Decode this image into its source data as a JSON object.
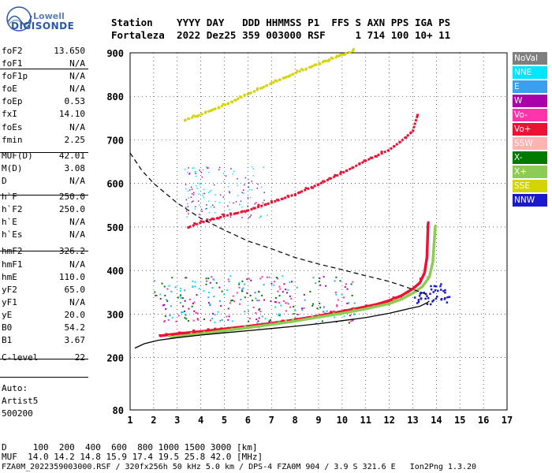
{
  "logo": {
    "line1": "Lowell",
    "line2": "DIGISONDE"
  },
  "header": {
    "columns": [
      "Station",
      "YYYY",
      "DAY",
      "DDD",
      "HHMMSS",
      "P1",
      "FFS",
      "S",
      "AXN",
      "PPS",
      "IGA",
      "PS"
    ],
    "values": [
      "Fortaleza",
      "2022",
      "Dez25",
      "359",
      "003000",
      "RSF",
      "",
      "1",
      "714",
      "100",
      "10+",
      "11"
    ]
  },
  "parameters": [
    {
      "name": "foF2",
      "value": "13.650"
    },
    {
      "name": "foF1",
      "value": "N/A"
    },
    {
      "name": "foF1p",
      "value": "N/A"
    },
    {
      "name": "foE",
      "value": "N/A"
    },
    {
      "name": "foEp",
      "value": "0.53"
    },
    {
      "name": "fxI",
      "value": "14.10"
    },
    {
      "name": "foEs",
      "value": "N/A"
    },
    {
      "name": "fmin",
      "value": "2.25"
    },
    {
      "name": "MUF(D)",
      "value": "42.01"
    },
    {
      "name": "M(D)",
      "value": "3.08"
    },
    {
      "name": "D",
      "value": "N/A"
    },
    {
      "name": "h`F",
      "value": "250.0"
    },
    {
      "name": "h`F2",
      "value": "250.0"
    },
    {
      "name": "h`E",
      "value": "N/A"
    },
    {
      "name": "h`Es",
      "value": "N/A"
    },
    {
      "name": "hmF2",
      "value": "326.2"
    },
    {
      "name": "hmF1",
      "value": "N/A"
    },
    {
      "name": "hmE",
      "value": "110.0"
    },
    {
      "name": "yF2",
      "value": "65.0"
    },
    {
      "name": "yF1",
      "value": "N/A"
    },
    {
      "name": "yE",
      "value": "20.0"
    },
    {
      "name": "B0",
      "value": "54.2"
    },
    {
      "name": "B1",
      "value": "3.67"
    },
    {
      "name": "C-level",
      "value": "22"
    }
  ],
  "autoscale": {
    "line1": "Auto:",
    "line2": "Artist5",
    "line3": "500200"
  },
  "legend": [
    {
      "label": "NoVal",
      "color": "#7f7f7f"
    },
    {
      "label": "NNE",
      "color": "#00e5ff"
    },
    {
      "label": "E",
      "color": "#3aa0ee"
    },
    {
      "label": "W",
      "color": "#aa00aa"
    },
    {
      "label": "Vo-",
      "color": "#ff33aa"
    },
    {
      "label": "Vo+",
      "color": "#ee1133"
    },
    {
      "label": "SSW",
      "color": "#ffb3b3"
    },
    {
      "label": "X-",
      "color": "#007a00"
    },
    {
      "label": "X+",
      "color": "#8ccc55"
    },
    {
      "label": "SSE",
      "color": "#d4d400"
    },
    {
      "label": "NNW",
      "color": "#1a1acc"
    }
  ],
  "footer": {
    "line1": "D     100  200  400  600  800 1000 1500 3000 [km]",
    "line2": "MUF  14.0 14.2 14.8 15.9 17.4 19.5 25.8 42.0 [MHz]",
    "line3": "FZA0M_2022359003000.RSF / 320fx256h 50 kHz 5.0 km / DPS-4 FZA0M 904 / 3.9 S 321.6 E   Ion2Png 1.3.20"
  },
  "chart_data": {
    "type": "scatter",
    "xlim": [
      1,
      17
    ],
    "ylim": [
      80,
      900
    ],
    "x_ticks": [
      1,
      2,
      3,
      4,
      5,
      6,
      7,
      8,
      9,
      10,
      11,
      12,
      13,
      14,
      15,
      16,
      17
    ],
    "y_ticks": [
      80,
      200,
      300,
      400,
      500,
      600,
      700,
      800,
      900
    ],
    "grid": true,
    "legend_position": "right",
    "traces": [
      {
        "name": "F2 O-trace",
        "color": "#ee1133",
        "points": [
          [
            2.25,
            250
          ],
          [
            3,
            255
          ],
          [
            4,
            260
          ],
          [
            5,
            266
          ],
          [
            6,
            272
          ],
          [
            7,
            279
          ],
          [
            8,
            287
          ],
          [
            9,
            296
          ],
          [
            10,
            306
          ],
          [
            11,
            317
          ],
          [
            11.5,
            323
          ],
          [
            12,
            331
          ],
          [
            12.5,
            342
          ],
          [
            13,
            358
          ],
          [
            13.3,
            372
          ],
          [
            13.5,
            395
          ],
          [
            13.6,
            430
          ],
          [
            13.65,
            510
          ]
        ]
      },
      {
        "name": "F2 X-trace",
        "color": "#8ccc55",
        "points": [
          [
            2.7,
            246
          ],
          [
            4,
            255
          ],
          [
            5,
            262
          ],
          [
            6,
            269
          ],
          [
            7,
            276
          ],
          [
            8,
            284
          ],
          [
            9,
            293
          ],
          [
            10,
            302
          ],
          [
            11,
            312
          ],
          [
            12,
            324
          ],
          [
            12.5,
            334
          ],
          [
            13,
            348
          ],
          [
            13.4,
            363
          ],
          [
            13.7,
            385
          ],
          [
            13.85,
            420
          ],
          [
            13.95,
            500
          ]
        ]
      },
      {
        "name": "2F2 trace",
        "color": "#ee1133",
        "points": [
          [
            3.5,
            500
          ],
          [
            4,
            510
          ],
          [
            5,
            525
          ],
          [
            6,
            538
          ],
          [
            7,
            556
          ],
          [
            8,
            575
          ],
          [
            9,
            598
          ],
          [
            10,
            624
          ],
          [
            11,
            652
          ],
          [
            12,
            677
          ],
          [
            12.5,
            697
          ],
          [
            13,
            720
          ],
          [
            13.2,
            757
          ]
        ]
      },
      {
        "name": "3F2 trace",
        "color": "#d4d400",
        "points": [
          [
            3.3,
            745
          ],
          [
            4,
            758
          ],
          [
            5,
            780
          ],
          [
            6,
            805
          ],
          [
            7,
            830
          ],
          [
            8,
            853
          ],
          [
            9,
            875
          ],
          [
            10,
            895
          ],
          [
            10.5,
            905
          ]
        ]
      },
      {
        "name": "NNW cluster",
        "color": "#1a1acc",
        "points": [
          [
            13.2,
            340
          ],
          [
            13.4,
            350
          ],
          [
            13.6,
            335
          ],
          [
            13.8,
            355
          ],
          [
            14,
            345
          ],
          [
            14.3,
            340
          ],
          [
            14.1,
            360
          ]
        ]
      }
    ],
    "profile": {
      "name": "Electron density profile",
      "color": "#000000",
      "points": [
        [
          1.2,
          222
        ],
        [
          1.6,
          232
        ],
        [
          2.2,
          240
        ],
        [
          3,
          246
        ],
        [
          4,
          252
        ],
        [
          5,
          257
        ],
        [
          6,
          262
        ],
        [
          7,
          267
        ],
        [
          8,
          272
        ],
        [
          9,
          278
        ],
        [
          10,
          285
        ],
        [
          11,
          292
        ],
        [
          12,
          302
        ],
        [
          12.8,
          312
        ],
        [
          13.3,
          318
        ],
        [
          13.6,
          326
        ],
        [
          13.7,
          330
        ]
      ]
    },
    "muf_curve": {
      "name": "MUF curve",
      "color": "#000000",
      "points": [
        [
          1,
          670
        ],
        [
          1.5,
          630
        ],
        [
          2,
          600
        ],
        [
          3,
          555
        ],
        [
          4,
          520
        ],
        [
          5,
          493
        ],
        [
          6,
          468
        ],
        [
          7,
          450
        ],
        [
          8,
          430
        ],
        [
          9,
          415
        ],
        [
          10,
          402
        ],
        [
          11,
          388
        ],
        [
          12,
          375
        ],
        [
          13,
          357
        ],
        [
          13.6,
          345
        ]
      ]
    }
  }
}
